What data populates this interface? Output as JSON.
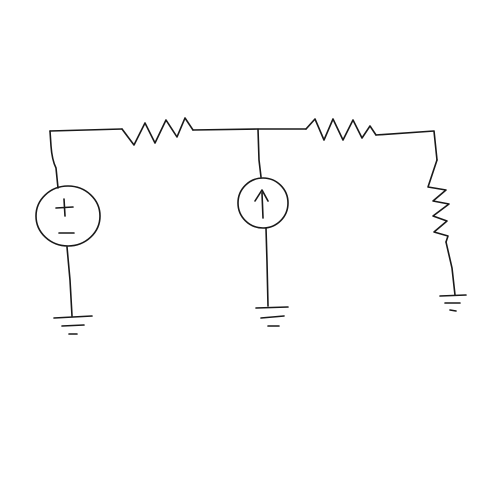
{
  "diagram": {
    "type": "circuit-schematic",
    "style": "hand-drawn",
    "stroke_color": "#1a1a1a",
    "background": "#ffffff",
    "components": [
      {
        "kind": "voltage-source",
        "markings": [
          "+",
          "−"
        ]
      },
      {
        "kind": "resistor",
        "orientation": "horizontal"
      },
      {
        "kind": "current-source",
        "direction": "up"
      },
      {
        "kind": "resistor",
        "orientation": "horizontal"
      },
      {
        "kind": "resistor",
        "orientation": "vertical"
      },
      {
        "kind": "ground"
      },
      {
        "kind": "ground"
      },
      {
        "kind": "ground"
      }
    ]
  }
}
